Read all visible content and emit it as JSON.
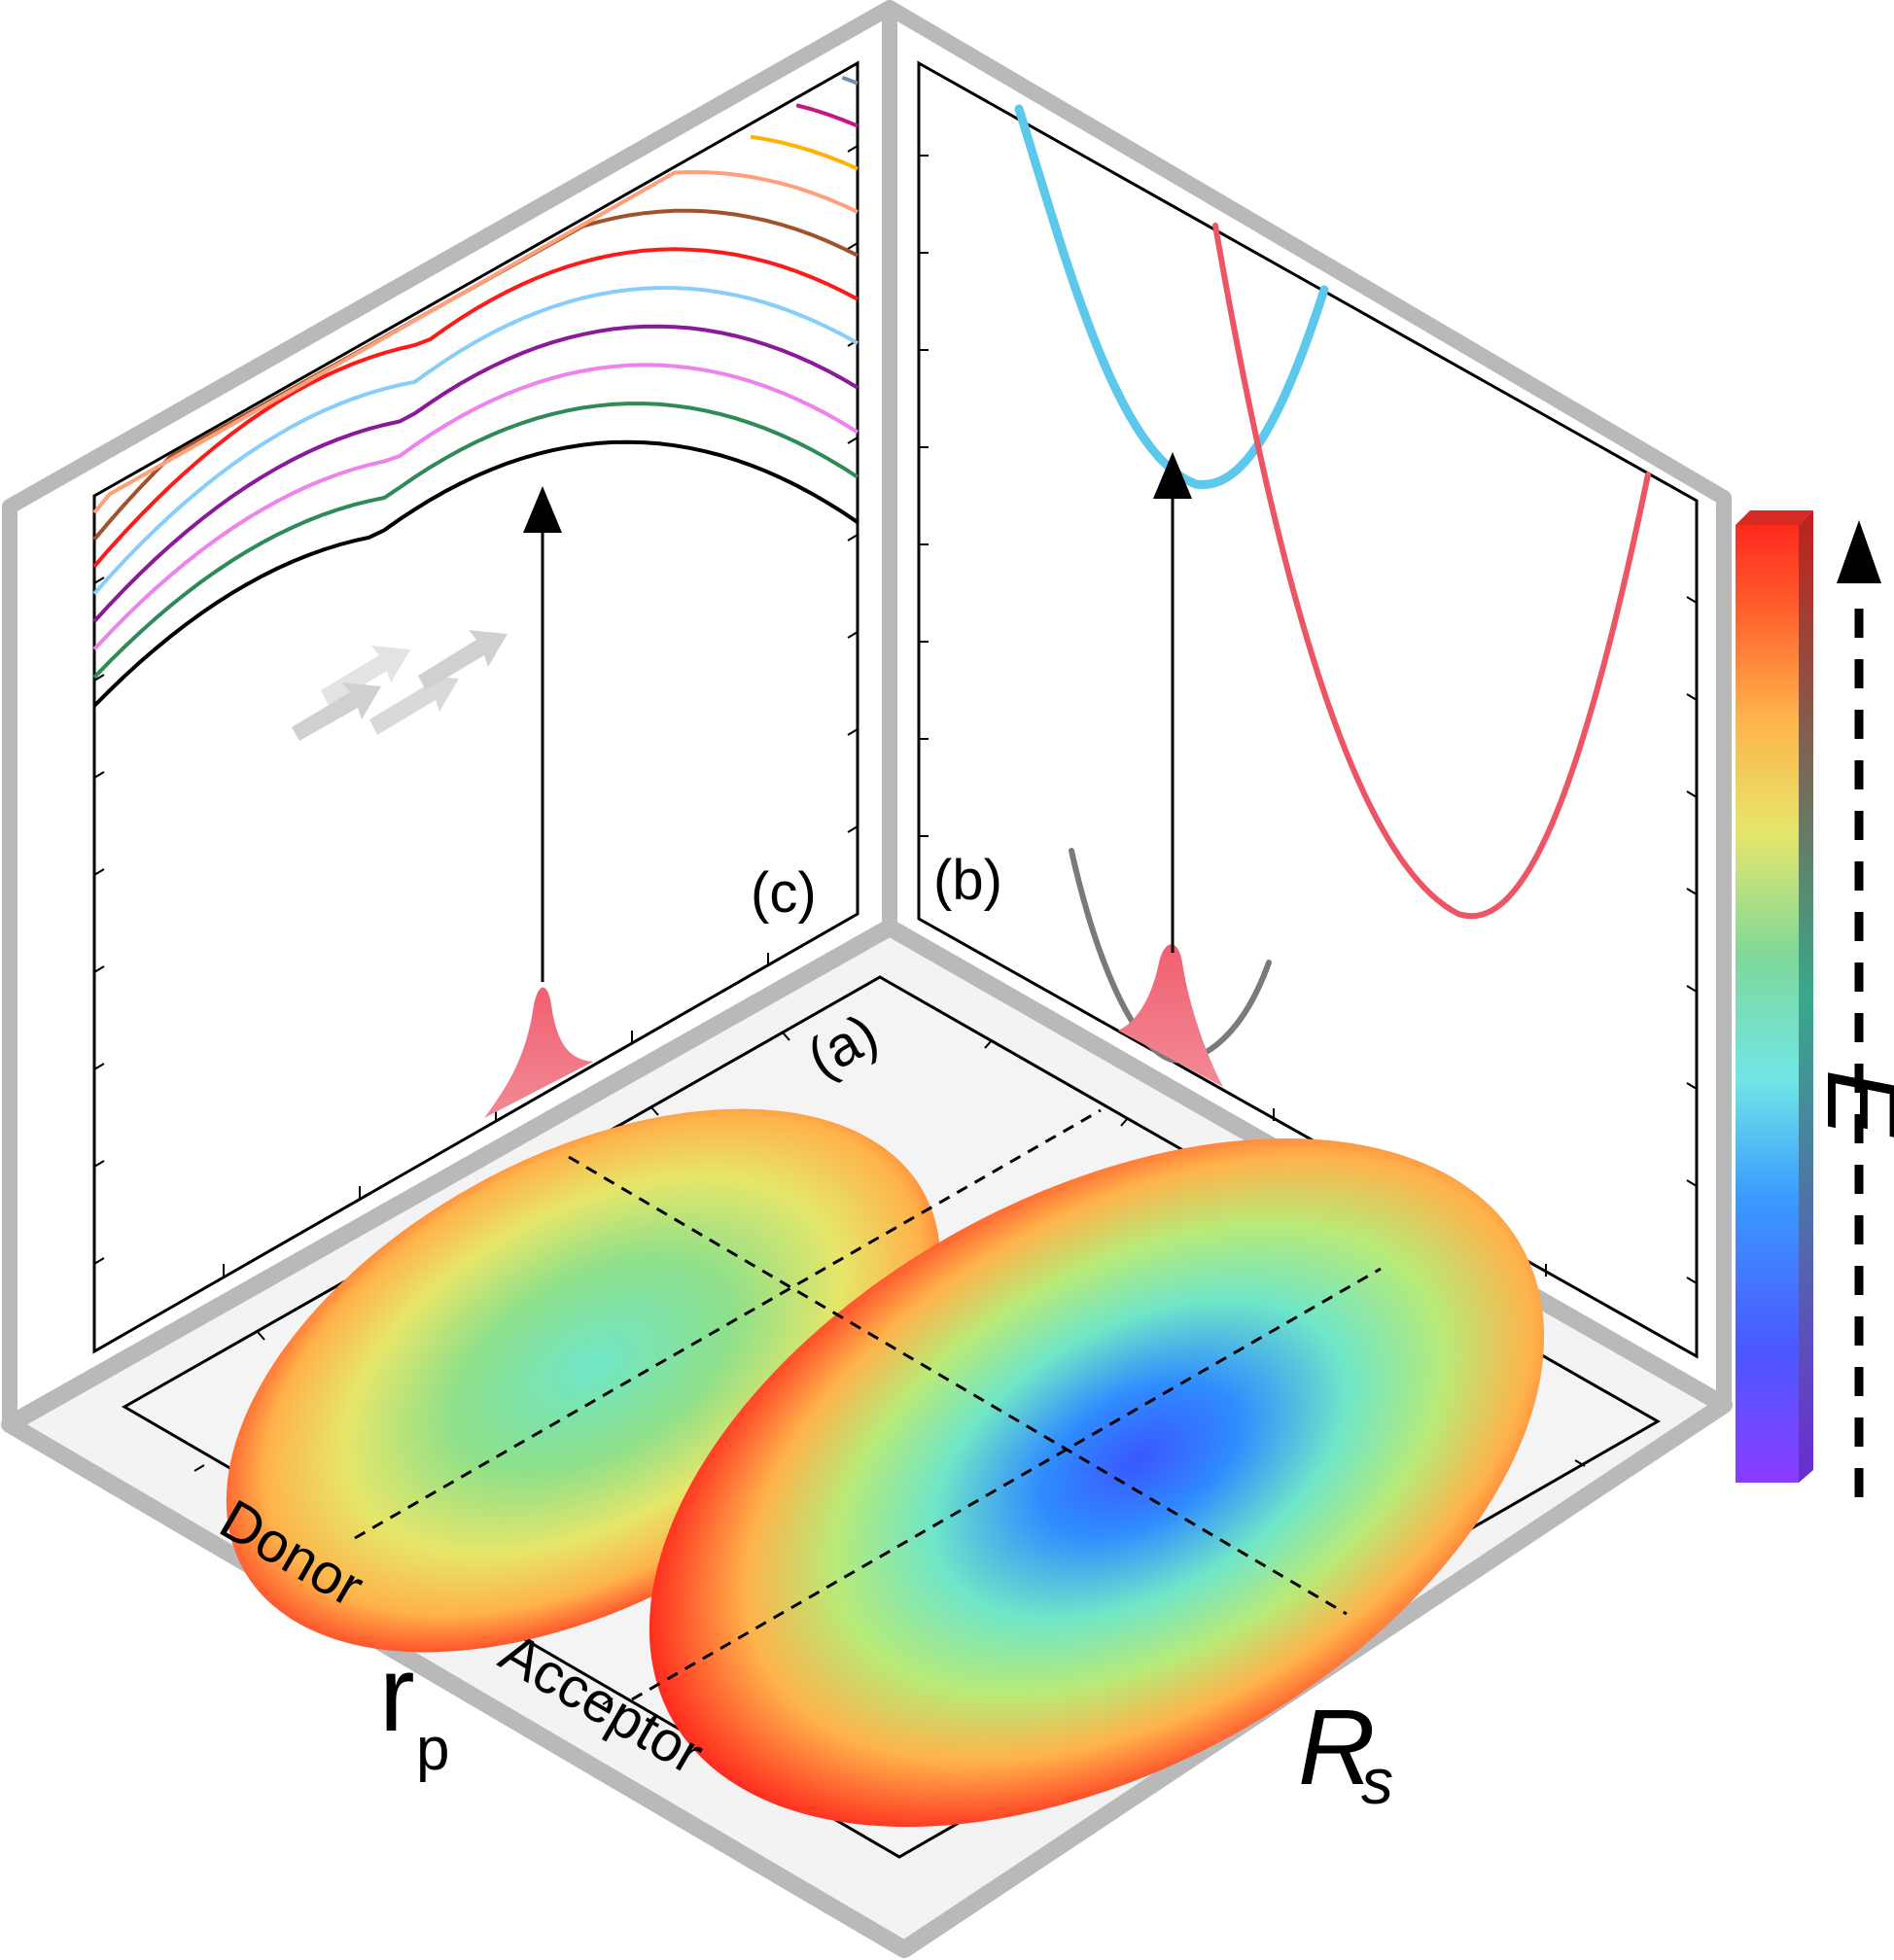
{
  "panels": {
    "a": "(a)",
    "b": "(b)",
    "c": "(c)"
  },
  "axes": {
    "rp_main": "r",
    "rp_sub": "p",
    "rs_main": "R",
    "rs_sub": "s",
    "energy": "E"
  },
  "floor_labels": {
    "donor": "Donor",
    "acceptor": "Acceptor"
  },
  "colors": {
    "wall_frame": "#bdbdbd",
    "floor_bg": "#f4f4f4",
    "blue_curve": "#5bc8ec",
    "red_curve": "#ee5564",
    "gray_curve": "#7a7a7a",
    "wavepacket": "#f06070"
  },
  "panel_c_curve_colors": [
    "#000000",
    "#2e8b57",
    "#ee82ee",
    "#8b1a9a",
    "#87cefa",
    "#ff1a1a",
    "#a0522d",
    "#ffa07a",
    "#ffb300",
    "#c71585",
    "#6e8fb5",
    "#f5a38a"
  ],
  "colorbar_colors": [
    "#ff2a1e",
    "#ff6a2a",
    "#ffb24a",
    "#e6e66a",
    "#8fe08a",
    "#6fe6c8",
    "#5aa6ff",
    "#4a58ff",
    "#8a3bff"
  ]
}
